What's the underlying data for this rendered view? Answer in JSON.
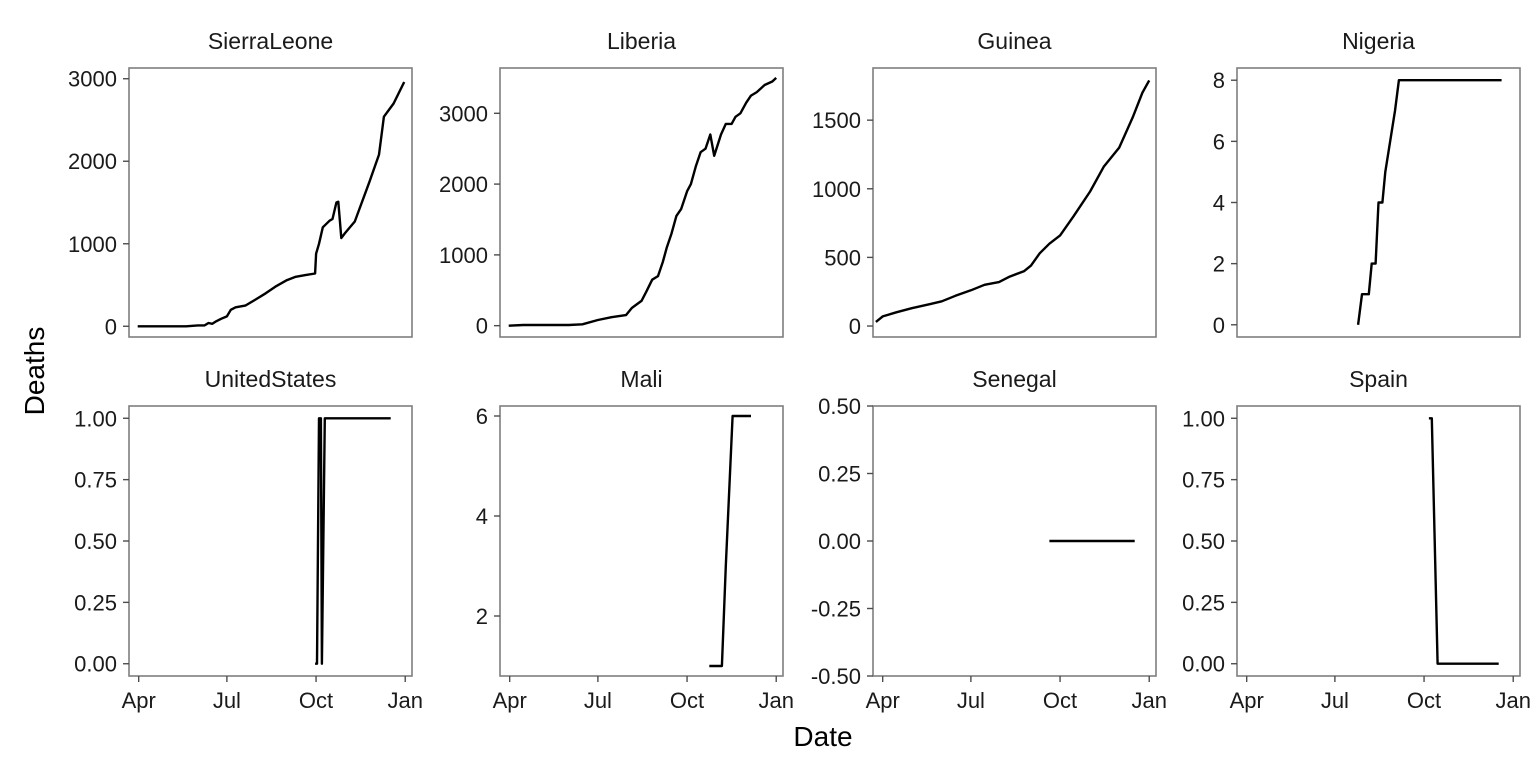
{
  "chart_data": {
    "type": "line",
    "facet_layout": "4 columns x 2 rows",
    "xlabel": "Date",
    "ylabel": "Deaths",
    "x_ticks": [
      {
        "label": "Apr",
        "date": "2014-04-01"
      },
      {
        "label": "Jul",
        "date": "2014-07-01"
      },
      {
        "label": "Oct",
        "date": "2014-10-01"
      },
      {
        "label": "Jan",
        "date": "2015-01-01"
      }
    ],
    "xlim": [
      "2014-03-22",
      "2015-01-08"
    ],
    "panels": [
      {
        "title": "SierraLeone",
        "ylim": [
          -130,
          3130
        ],
        "y_ticks": [
          {
            "v": 0,
            "label": "0"
          },
          {
            "v": 1000,
            "label": "1000"
          },
          {
            "v": 2000,
            "label": "2000"
          },
          {
            "v": 3000,
            "label": "3000"
          }
        ],
        "x": [
          "2014-03-31",
          "2014-04-15",
          "2014-05-01",
          "2014-05-20",
          "2014-06-01",
          "2014-06-08",
          "2014-06-12",
          "2014-06-16",
          "2014-06-20",
          "2014-06-25",
          "2014-07-01",
          "2014-07-05",
          "2014-07-10",
          "2014-07-20",
          "2014-07-30",
          "2014-08-10",
          "2014-08-20",
          "2014-09-01",
          "2014-09-10",
          "2014-09-20",
          "2014-09-30",
          "2014-10-01",
          "2014-10-04",
          "2014-10-08",
          "2014-10-15",
          "2014-10-18",
          "2014-10-22",
          "2014-10-24",
          "2014-10-27",
          "2014-10-31",
          "2014-11-10",
          "2014-11-25",
          "2014-12-05",
          "2014-12-10",
          "2014-12-20",
          "2014-12-31"
        ],
        "y": [
          0,
          0,
          0,
          0,
          10,
          10,
          40,
          30,
          60,
          90,
          120,
          200,
          230,
          250,
          320,
          400,
          480,
          560,
          600,
          620,
          640,
          880,
          1000,
          1200,
          1280,
          1300,
          1500,
          1510,
          1070,
          1130,
          1270,
          1750,
          2080,
          2540,
          2700,
          2960
        ]
      },
      {
        "title": "Liberia",
        "ylim": [
          -160,
          3640
        ],
        "y_ticks": [
          {
            "v": 0,
            "label": "0"
          },
          {
            "v": 1000,
            "label": "1000"
          },
          {
            "v": 2000,
            "label": "2000"
          },
          {
            "v": 3000,
            "label": "3000"
          }
        ],
        "x": [
          "2014-03-31",
          "2014-04-15",
          "2014-05-01",
          "2014-06-01",
          "2014-06-15",
          "2014-07-01",
          "2014-07-15",
          "2014-07-30",
          "2014-08-05",
          "2014-08-10",
          "2014-08-15",
          "2014-08-20",
          "2014-08-26",
          "2014-09-01",
          "2014-09-06",
          "2014-09-10",
          "2014-09-15",
          "2014-09-20",
          "2014-09-25",
          "2014-10-01",
          "2014-10-05",
          "2014-10-10",
          "2014-10-15",
          "2014-10-20",
          "2014-10-25",
          "2014-10-29",
          "2014-11-05",
          "2014-11-10",
          "2014-11-16",
          "2014-11-20",
          "2014-11-25",
          "2014-12-01",
          "2014-12-06",
          "2014-12-12",
          "2014-12-20",
          "2014-12-28",
          "2015-01-01"
        ],
        "y": [
          0,
          10,
          10,
          10,
          20,
          80,
          120,
          150,
          250,
          300,
          350,
          480,
          650,
          700,
          900,
          1100,
          1300,
          1550,
          1650,
          1900,
          2000,
          2250,
          2450,
          2500,
          2700,
          2400,
          2700,
          2850,
          2850,
          2950,
          3000,
          3150,
          3250,
          3300,
          3400,
          3450,
          3500
        ]
      },
      {
        "title": "Guinea",
        "ylim": [
          -80,
          1880
        ],
        "y_ticks": [
          {
            "v": 0,
            "label": "0"
          },
          {
            "v": 500,
            "label": "500"
          },
          {
            "v": 1000,
            "label": "1000"
          },
          {
            "v": 1500,
            "label": "1500"
          }
        ],
        "x": [
          "2014-03-25",
          "2014-04-01",
          "2014-04-15",
          "2014-05-01",
          "2014-05-20",
          "2014-06-01",
          "2014-06-15",
          "2014-07-01",
          "2014-07-15",
          "2014-07-30",
          "2014-08-10",
          "2014-08-25",
          "2014-09-01",
          "2014-09-10",
          "2014-09-20",
          "2014-10-01",
          "2014-10-15",
          "2014-11-01",
          "2014-11-15",
          "2014-12-01",
          "2014-12-15",
          "2014-12-25",
          "2015-01-01"
        ],
        "y": [
          30,
          70,
          100,
          130,
          160,
          180,
          220,
          260,
          300,
          320,
          360,
          400,
          440,
          530,
          600,
          660,
          800,
          980,
          1160,
          1300,
          1520,
          1700,
          1790
        ]
      },
      {
        "title": "Nigeria",
        "ylim": [
          -0.4,
          8.4
        ],
        "y_ticks": [
          {
            "v": 0,
            "label": "0"
          },
          {
            "v": 2,
            "label": "2"
          },
          {
            "v": 4,
            "label": "4"
          },
          {
            "v": 6,
            "label": "6"
          },
          {
            "v": 8,
            "label": "8"
          }
        ],
        "x": [
          "2014-07-25",
          "2014-07-29",
          "2014-08-05",
          "2014-08-08",
          "2014-08-12",
          "2014-08-15",
          "2014-08-19",
          "2014-08-22",
          "2014-09-01",
          "2014-09-05",
          "2014-12-20"
        ],
        "y": [
          0,
          1,
          1,
          2,
          2,
          4,
          4,
          5,
          7,
          8,
          8
        ]
      },
      {
        "title": "UnitedStates",
        "ylim": [
          -0.05,
          1.05
        ],
        "y_ticks": [
          {
            "v": 0,
            "label": "0.00"
          },
          {
            "v": 0.25,
            "label": "0.25"
          },
          {
            "v": 0.5,
            "label": "0.50"
          },
          {
            "v": 0.75,
            "label": "0.75"
          },
          {
            "v": 1,
            "label": "1.00"
          }
        ],
        "x": [
          "2014-09-30",
          "2014-10-02",
          "2014-10-04",
          "2014-10-06",
          "2014-10-07",
          "2014-10-10",
          "2014-10-12",
          "2014-12-17"
        ],
        "y": [
          0,
          0,
          1,
          1,
          0,
          1,
          1,
          1
        ]
      },
      {
        "title": "Mali",
        "ylim": [
          0.8,
          6.2
        ],
        "y_ticks": [
          {
            "v": 2,
            "label": "2"
          },
          {
            "v": 4,
            "label": "4"
          },
          {
            "v": 6,
            "label": "6"
          }
        ],
        "x": [
          "2014-10-24",
          "2014-11-06",
          "2014-11-10",
          "2014-11-17",
          "2014-11-30",
          "2014-12-06"
        ],
        "y": [
          1,
          1,
          3,
          6,
          6,
          6
        ]
      },
      {
        "title": "Senegal",
        "ylim": [
          -0.5,
          0.5
        ],
        "y_ticks": [
          {
            "v": -0.5,
            "label": "-0.50"
          },
          {
            "v": -0.25,
            "label": "-0.25"
          },
          {
            "v": 0,
            "label": "0.00"
          },
          {
            "v": 0.25,
            "label": "0.25"
          },
          {
            "v": 0.5,
            "label": "0.50"
          }
        ],
        "x": [
          "2014-09-20",
          "2014-12-17"
        ],
        "y": [
          0,
          0
        ]
      },
      {
        "title": "Spain",
        "ylim": [
          -0.05,
          1.05
        ],
        "y_ticks": [
          {
            "v": 0,
            "label": "0.00"
          },
          {
            "v": 0.25,
            "label": "0.25"
          },
          {
            "v": 0.5,
            "label": "0.50"
          },
          {
            "v": 0.75,
            "label": "0.75"
          },
          {
            "v": 1,
            "label": "1.00"
          }
        ],
        "x": [
          "2014-10-06",
          "2014-10-09",
          "2014-10-15",
          "2014-12-17"
        ],
        "y": [
          1,
          1,
          0,
          0
        ]
      }
    ]
  }
}
